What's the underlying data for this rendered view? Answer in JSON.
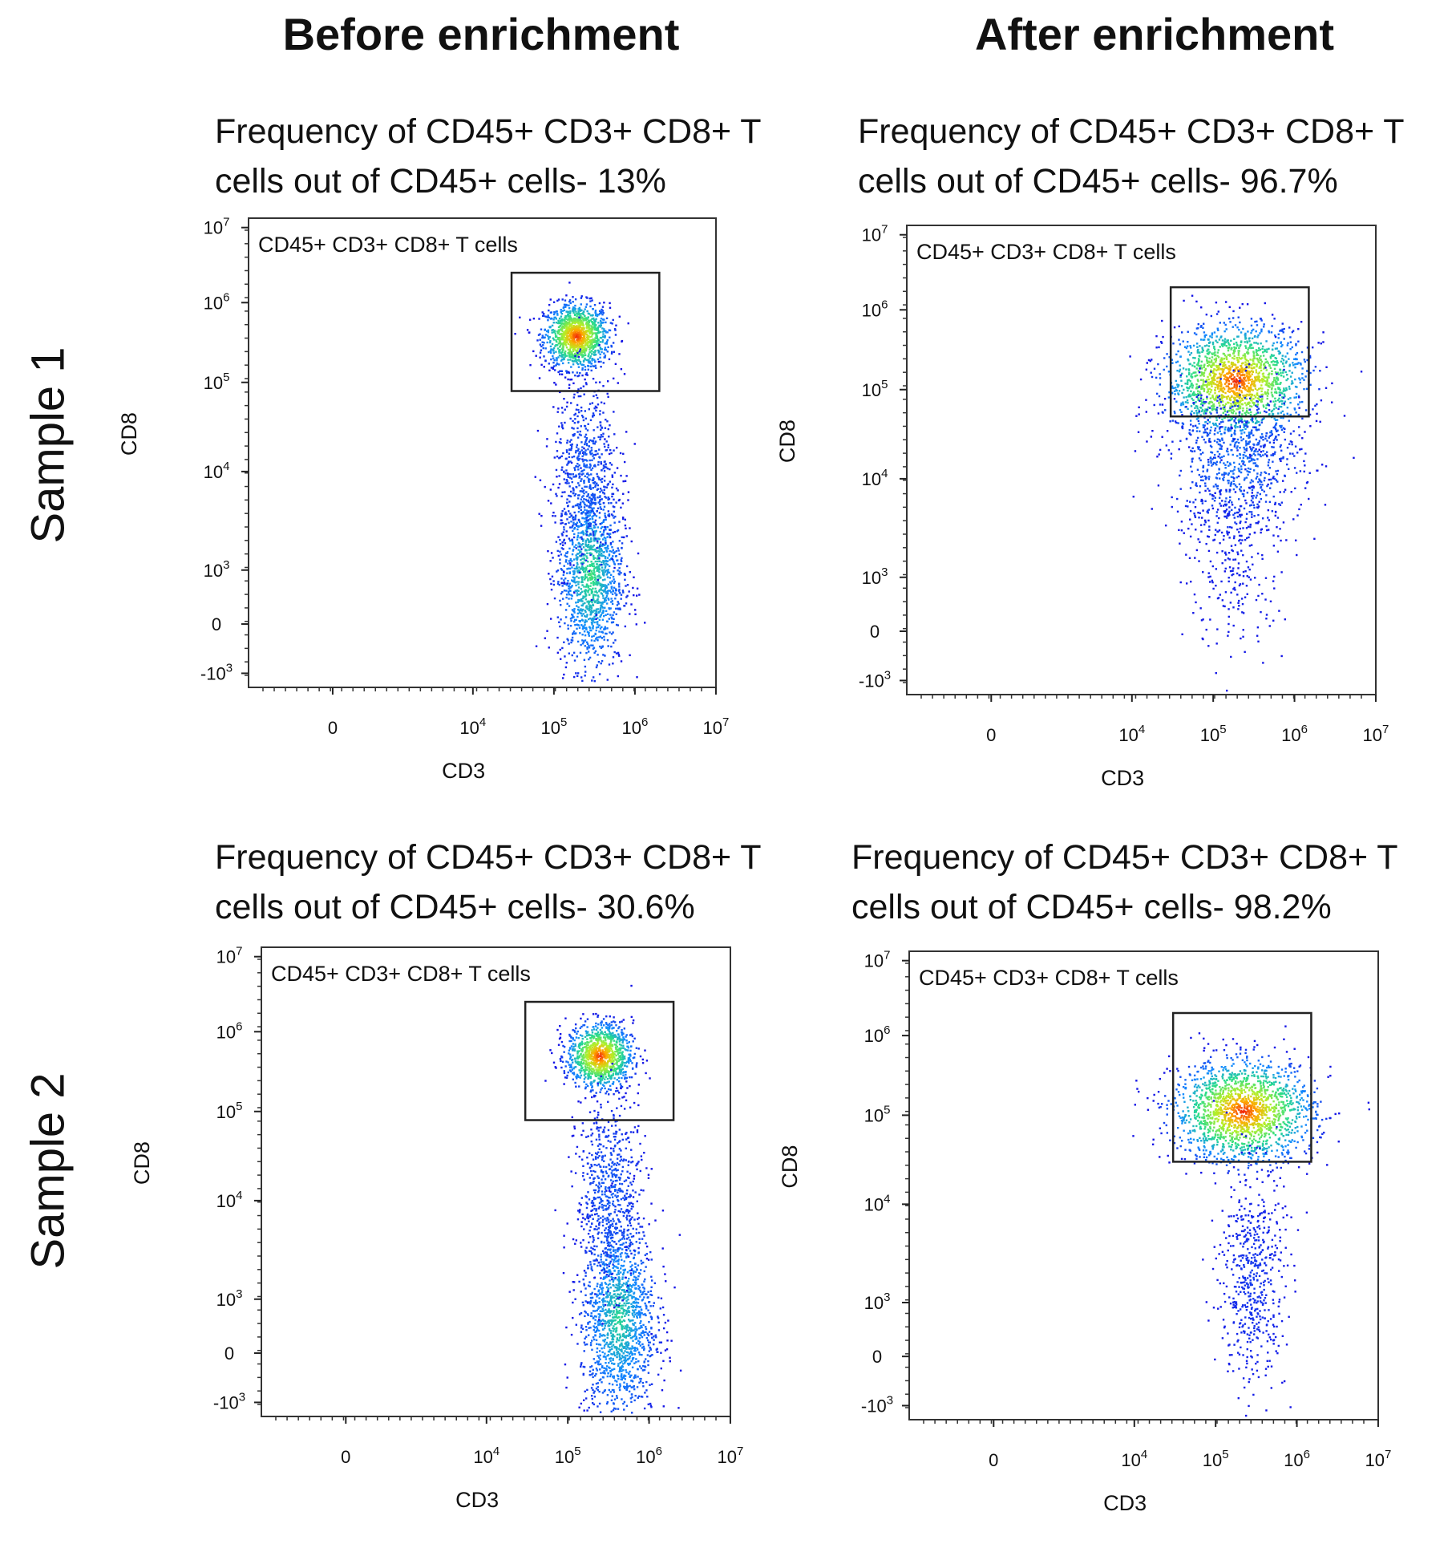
{
  "column_headers": [
    "Before enrichment",
    "After enrichment"
  ],
  "row_labels": [
    "Sample 1",
    "Sample 2"
  ],
  "chart_data": [
    {
      "type": "scatter",
      "sample": "Sample 1",
      "condition": "Before enrichment",
      "title": [
        "Frequency of CD45+ CD3+ CD8+ T",
        "cells out of CD45+ cells- 13%"
      ],
      "frequency_percent": 13,
      "xlabel": "CD3",
      "ylabel": "CD8",
      "x_scale": "biexponential",
      "y_scale": "biexponential",
      "x_ticks": [
        "0",
        "10^4",
        "10^5",
        "10^6",
        "10^7"
      ],
      "y_ticks": [
        "-10^3",
        "0",
        "10^3",
        "10^4",
        "10^5",
        "10^6",
        "10^7"
      ],
      "gate": {
        "name": "CD45+ CD3+ CD8+ T cells",
        "x_range": [
          30000,
          2000000
        ],
        "y_range": [
          80000,
          2500000
        ]
      },
      "populations": [
        {
          "x": 200000,
          "y": 250000,
          "note": "dense, peak red"
        },
        {
          "x": 200000,
          "y": 1500,
          "note": "dense, green-yellow"
        },
        {
          "x": 200000,
          "y": 30000,
          "note": "sparse bridge"
        }
      ]
    },
    {
      "type": "scatter",
      "sample": "Sample 1",
      "condition": "After enrichment",
      "title": [
        "Frequency of CD45+ CD3+ CD8+ T",
        "cells out of CD45+ cells- 96.7%"
      ],
      "frequency_percent": 96.7,
      "xlabel": "CD3",
      "ylabel": "CD8",
      "x_scale": "biexponential",
      "y_scale": "biexponential",
      "x_ticks": [
        "0",
        "10^4",
        "10^5",
        "10^6",
        "10^7"
      ],
      "y_ticks": [
        "-10^3",
        "0",
        "10^3",
        "10^4",
        "10^5",
        "10^6",
        "10^7"
      ],
      "gate": {
        "name": "CD45+ CD3+ CD8+ T cells",
        "x_range": [
          30000,
          1500000
        ],
        "y_range": [
          50000,
          2000000
        ]
      },
      "populations": [
        {
          "x": 250000,
          "y": 200000,
          "note": "dense, peak red"
        },
        {
          "x": 250000,
          "y": 20000,
          "note": "tail"
        }
      ]
    },
    {
      "type": "scatter",
      "sample": "Sample 2",
      "condition": "Before enrichment",
      "title": [
        "Frequency of CD45+ CD3+ CD8+ T",
        "cells out of CD45+ cells- 30.6%"
      ],
      "frequency_percent": 30.6,
      "xlabel": "CD3",
      "ylabel": "CD8",
      "x_scale": "biexponential",
      "y_scale": "biexponential",
      "x_ticks": [
        "0",
        "10^4",
        "10^5",
        "10^6",
        "10^7"
      ],
      "y_ticks": [
        "-10^3",
        "0",
        "10^3",
        "10^4",
        "10^5",
        "10^6",
        "10^7"
      ],
      "gate": {
        "name": "CD45+ CD3+ CD8+ T cells",
        "x_range": [
          30000,
          2000000
        ],
        "y_range": [
          80000,
          2500000
        ]
      },
      "populations": [
        {
          "x": 250000,
          "y": 300000,
          "note": "dense, peak red"
        },
        {
          "x": 300000,
          "y": 1000,
          "note": "dense, green"
        },
        {
          "x": 250000,
          "y": 20000,
          "note": "sparse bridge"
        }
      ]
    },
    {
      "type": "scatter",
      "sample": "Sample 2",
      "condition": "After enrichment",
      "title": [
        "Frequency of CD45+ CD3+ CD8+ T",
        "cells out of CD45+ cells- 98.2%"
      ],
      "frequency_percent": 98.2,
      "xlabel": "CD3",
      "ylabel": "CD8",
      "x_scale": "biexponential",
      "y_scale": "biexponential",
      "x_ticks": [
        "0",
        "10^4",
        "10^5",
        "10^6",
        "10^7"
      ],
      "y_ticks": [
        "-10^3",
        "0",
        "10^3",
        "10^4",
        "10^5",
        "10^6",
        "10^7"
      ],
      "gate": {
        "name": "CD45+ CD3+ CD8+ T cells",
        "x_range": [
          30000,
          1500000
        ],
        "y_range": [
          30000,
          2000000
        ]
      },
      "populations": [
        {
          "x": 250000,
          "y": 200000,
          "note": "dense, peak red"
        },
        {
          "x": 300000,
          "y": 1000,
          "note": "sparse tail"
        }
      ]
    }
  ]
}
